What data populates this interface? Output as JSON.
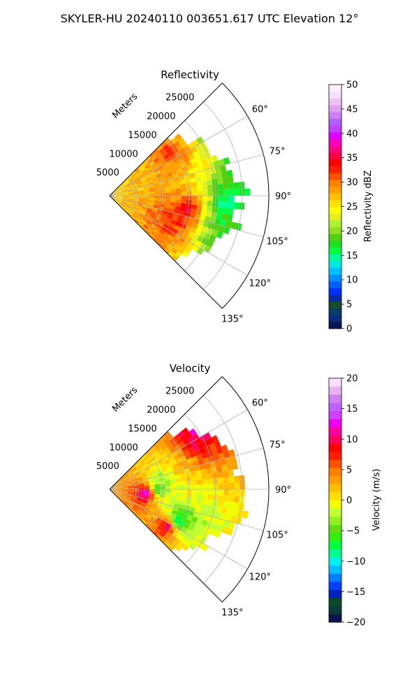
{
  "figure": {
    "title": "SKYLER-HU  20240110  003651.617 UTC Elevation 12°"
  },
  "chart_data": [
    {
      "type": "heatmap",
      "projection": "polar-sector",
      "title": "Reflectivity",
      "range_label": "Meters",
      "range_ticks": [
        5000,
        10000,
        15000,
        20000,
        25000
      ],
      "range_tick_labels": [
        "5000",
        "10000",
        "15000",
        "20000",
        "25000"
      ],
      "range_max": 30000,
      "azimuth_range_deg": [
        45,
        135
      ],
      "azimuth_ticks": [
        60,
        75,
        90,
        105,
        120,
        135
      ],
      "azimuth_tick_labels": [
        "60°",
        "75°",
        "90°",
        "105°",
        "120°",
        "135°"
      ],
      "grid": true,
      "colorbar": {
        "label": "Reflectivity dBZ",
        "min": 0,
        "max": 50,
        "ticks": [
          0,
          5,
          10,
          15,
          20,
          25,
          30,
          35,
          40,
          45,
          50
        ],
        "tick_labels": [
          "0",
          "5",
          "10",
          "15",
          "20",
          "25",
          "30",
          "35",
          "40",
          "45",
          "50"
        ],
        "colors": [
          "#0a1450",
          "#0b2a7a",
          "#0a3d6a",
          "#1a4a30",
          "#0a2aa0",
          "#0030ff",
          "#0060ff",
          "#0090ff",
          "#00c0ff",
          "#00e8e8",
          "#00ff99",
          "#00ff40",
          "#20e020",
          "#50d010",
          "#88e020",
          "#b0f030",
          "#e0f020",
          "#ffff00",
          "#ffe000",
          "#ffc000",
          "#ffa000",
          "#ff8000",
          "#ff5000",
          "#ff2000",
          "#ff0000",
          "#ff0040",
          "#ff0080",
          "#ff00c0",
          "#e000ff",
          "#c040ff",
          "#b060ff",
          "#d080f0",
          "#e0a0f0",
          "#f0c0f8",
          "#f8e0fc",
          "#fff0ff"
        ]
      },
      "data_points": [
        {
          "az": 52,
          "r": 22000,
          "v": 18
        },
        {
          "az": 58,
          "r": 24000,
          "v": 17
        },
        {
          "az": 65,
          "r": 25000,
          "v": 16
        },
        {
          "az": 72,
          "r": 26000,
          "v": 17
        },
        {
          "az": 80,
          "r": 25000,
          "v": 16
        },
        {
          "az": 88,
          "r": 23000,
          "v": 15
        },
        {
          "az": 96,
          "r": 22000,
          "v": 14
        },
        {
          "az": 104,
          "r": 22000,
          "v": 17
        },
        {
          "az": 112,
          "r": 21000,
          "v": 18
        },
        {
          "az": 55,
          "r": 14000,
          "v": 34
        },
        {
          "az": 62,
          "r": 16000,
          "v": 30
        },
        {
          "az": 70,
          "r": 18000,
          "v": 25
        },
        {
          "az": 100,
          "r": 15000,
          "v": 36
        },
        {
          "az": 108,
          "r": 14000,
          "v": 34
        },
        {
          "az": 115,
          "r": 12000,
          "v": 32
        }
      ]
    },
    {
      "type": "heatmap",
      "projection": "polar-sector",
      "title": "Velocity",
      "range_label": "Meters",
      "range_ticks": [
        5000,
        10000,
        15000,
        20000,
        25000
      ],
      "range_tick_labels": [
        "5000",
        "10000",
        "15000",
        "20000",
        "25000"
      ],
      "range_max": 30000,
      "azimuth_range_deg": [
        45,
        135
      ],
      "azimuth_ticks": [
        60,
        75,
        90,
        105,
        120,
        135
      ],
      "azimuth_tick_labels": [
        "60°",
        "75°",
        "90°",
        "105°",
        "120°",
        "135°"
      ],
      "grid": true,
      "colorbar": {
        "label": "Velocity (m/s)",
        "min": -20,
        "max": 20,
        "ticks": [
          -20,
          -15,
          -10,
          -5,
          0,
          5,
          10,
          15,
          20
        ],
        "tick_labels": [
          "−20",
          "−15",
          "−10",
          "−5",
          "0",
          "5",
          "10",
          "15",
          "20"
        ],
        "colors": [
          "#0a1450",
          "#0a3a3a",
          "#0a4a2a",
          "#0020c0",
          "#0040ff",
          "#0080ff",
          "#00c0ff",
          "#00f0f0",
          "#00ff90",
          "#00ff40",
          "#30f010",
          "#60e010",
          "#90f020",
          "#c0ff30",
          "#f0ff00",
          "#ffe000",
          "#ffc000",
          "#ffa000",
          "#ff8000",
          "#ff5000",
          "#ff2000",
          "#ff0000",
          "#ff0060",
          "#ff00a0",
          "#f000f0",
          "#d040ff",
          "#c060ff",
          "#d080f0",
          "#e8b0f0",
          "#f8e0fc"
        ]
      },
      "data_points": [
        {
          "az": 55,
          "r": 20000,
          "v": 13
        },
        {
          "az": 62,
          "r": 18000,
          "v": 10
        },
        {
          "az": 70,
          "r": 14000,
          "v": 2
        },
        {
          "az": 80,
          "r": 10000,
          "v": -4
        },
        {
          "az": 90,
          "r": 9000,
          "v": -8
        },
        {
          "az": 96,
          "r": 7000,
          "v": 15
        },
        {
          "az": 100,
          "r": 15000,
          "v": 0
        },
        {
          "az": 108,
          "r": 15000,
          "v": -6
        },
        {
          "az": 115,
          "r": 14000,
          "v": -12
        },
        {
          "az": 122,
          "r": 13000,
          "v": 14
        }
      ]
    }
  ]
}
